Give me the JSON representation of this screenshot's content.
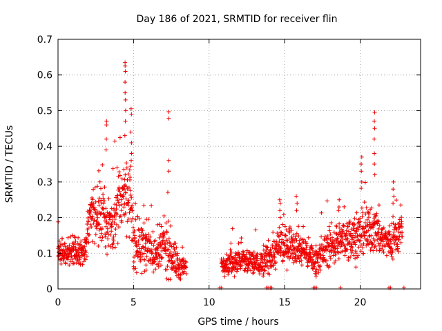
{
  "chart_data": {
    "type": "scatter",
    "title": "Day 186 of 2021, SRMTID for receiver flin",
    "xlabel": "GPS time / hours",
    "ylabel": "SRMTID / TECUs",
    "xlim": [
      0,
      24
    ],
    "ylim": [
      0,
      0.7
    ],
    "grid": true,
    "marker": "+",
    "color": "#ee0000",
    "x_ticks": [
      0,
      5,
      10,
      15,
      20
    ],
    "y_ticks": [
      0,
      0.1,
      0.2,
      0.3,
      0.4,
      0.5,
      0.6,
      0.7
    ],
    "x_tick_labels": [
      "0",
      "5",
      "10",
      "15",
      "20"
    ],
    "y_tick_labels": [
      "0",
      "0.1",
      "0.2",
      "0.3",
      "0.4",
      "0.5",
      "0.6",
      "0.7"
    ],
    "profile": [
      {
        "t": 0.0,
        "base": 0.1,
        "spread": 0.03
      },
      {
        "t": 1.0,
        "base": 0.1,
        "spread": 0.03
      },
      {
        "t": 1.8,
        "base": 0.11,
        "spread": 0.03
      },
      {
        "t": 2.0,
        "base": 0.2,
        "spread": 0.06
      },
      {
        "t": 3.0,
        "base": 0.21,
        "spread": 0.07
      },
      {
        "t": 3.5,
        "base": 0.17,
        "spread": 0.05
      },
      {
        "t": 4.4,
        "base": 0.28,
        "spread": 0.08
      },
      {
        "t": 4.8,
        "base": 0.25,
        "spread": 0.08
      },
      {
        "t": 5.0,
        "base": 0.13,
        "spread": 0.05
      },
      {
        "t": 6.0,
        "base": 0.12,
        "spread": 0.05
      },
      {
        "t": 6.5,
        "base": 0.09,
        "spread": 0.04
      },
      {
        "t": 7.0,
        "base": 0.12,
        "spread": 0.06
      },
      {
        "t": 7.5,
        "base": 0.1,
        "spread": 0.05
      },
      {
        "t": 8.0,
        "base": 0.06,
        "spread": 0.03
      },
      {
        "t": 8.5,
        "base": 0.06,
        "spread": 0.02
      },
      {
        "t": 10.8,
        "base": 0.07,
        "spread": 0.02
      },
      {
        "t": 12.0,
        "base": 0.08,
        "spread": 0.03
      },
      {
        "t": 13.5,
        "base": 0.07,
        "spread": 0.03
      },
      {
        "t": 14.5,
        "base": 0.11,
        "spread": 0.04
      },
      {
        "t": 15.5,
        "base": 0.13,
        "spread": 0.04
      },
      {
        "t": 16.5,
        "base": 0.1,
        "spread": 0.03
      },
      {
        "t": 17.0,
        "base": 0.08,
        "spread": 0.03
      },
      {
        "t": 18.0,
        "base": 0.12,
        "spread": 0.04
      },
      {
        "t": 19.0,
        "base": 0.14,
        "spread": 0.04
      },
      {
        "t": 20.0,
        "base": 0.15,
        "spread": 0.05
      },
      {
        "t": 21.0,
        "base": 0.17,
        "spread": 0.05
      },
      {
        "t": 21.5,
        "base": 0.14,
        "spread": 0.04
      },
      {
        "t": 22.0,
        "base": 0.13,
        "spread": 0.04
      },
      {
        "t": 22.8,
        "base": 0.17,
        "spread": 0.04
      }
    ],
    "gaps": [
      [
        8.5,
        10.8
      ]
    ],
    "spikes": [
      {
        "x": 3.2,
        "y": [
          0.47,
          0.46,
          0.42,
          0.39
        ]
      },
      {
        "x": 4.45,
        "y": [
          0.635,
          0.625,
          0.61,
          0.58,
          0.55,
          0.53,
          0.5,
          0.47,
          0.43
        ]
      },
      {
        "x": 4.85,
        "y": [
          0.505,
          0.49,
          0.44,
          0.41,
          0.38,
          0.36
        ]
      },
      {
        "x": 7.35,
        "y": [
          0.497,
          0.478,
          0.36,
          0.33
        ]
      },
      {
        "x": 20.1,
        "y": [
          0.37,
          0.35,
          0.33,
          0.3
        ]
      },
      {
        "x": 20.95,
        "y": [
          0.495,
          0.47,
          0.45,
          0.42,
          0.38,
          0.35,
          0.32
        ]
      },
      {
        "x": 22.2,
        "y": [
          0.3,
          0.28,
          0.26,
          0.24
        ]
      },
      {
        "x": 14.7,
        "y": [
          0.25,
          0.24,
          0.22,
          0.2
        ]
      },
      {
        "x": 15.8,
        "y": [
          0.26,
          0.24,
          0.22
        ]
      },
      {
        "x": 18.6,
        "y": [
          0.25,
          0.23,
          0.22
        ]
      }
    ],
    "zero_points": [
      10.7,
      10.8,
      13.8,
      13.9,
      14.05,
      14.15,
      16.9,
      17.0,
      17.1,
      18.7,
      21.9,
      22.0,
      22.9
    ]
  }
}
